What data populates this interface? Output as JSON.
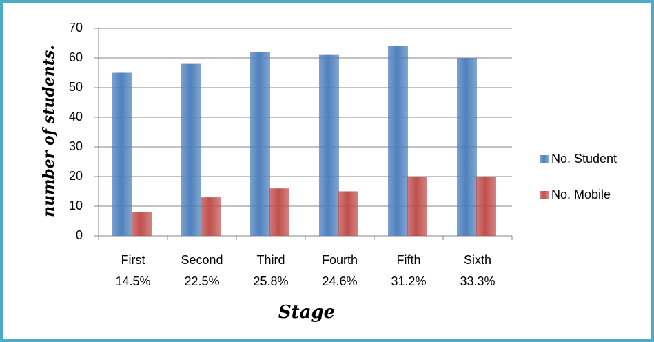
{
  "chart_data": {
    "type": "bar",
    "y_axis_label": "number of students.",
    "x_axis_label": "Stage",
    "categories": [
      [
        "First",
        "14.5%"
      ],
      [
        "Second",
        "22.5%"
      ],
      [
        "Third",
        "25.8%"
      ],
      [
        "Fourth",
        "24.6%"
      ],
      [
        "Fifth",
        "31.2%"
      ],
      [
        "Sixth",
        "33.3%"
      ]
    ],
    "series": [
      {
        "name": "No. Student",
        "color": "#4f81bd",
        "values": [
          55,
          58,
          62,
          61,
          64,
          60
        ]
      },
      {
        "name": "No. Mobile",
        "color": "#c0504d",
        "values": [
          8,
          13,
          16,
          15,
          20,
          20
        ]
      }
    ],
    "ylim": [
      0,
      70
    ],
    "yticks": [
      0,
      10,
      20,
      30,
      40,
      50,
      60,
      70
    ],
    "grid": true,
    "legend": "right"
  }
}
